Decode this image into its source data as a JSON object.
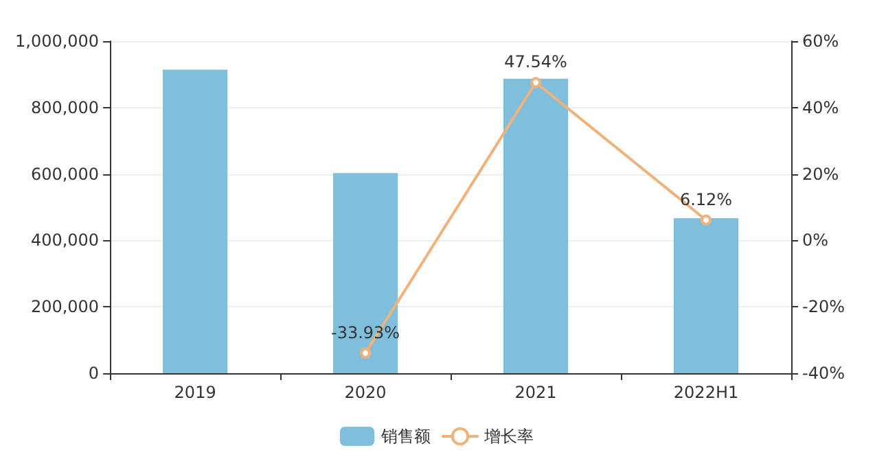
{
  "chart_data": {
    "type": "bar",
    "categories": [
      "2019",
      "2020",
      "2021",
      "2022H1"
    ],
    "series": [
      {
        "name": "销售额",
        "color": "#7fbfdc",
        "values": [
          914000,
          603000,
          887000,
          467000
        ]
      },
      {
        "name": "增长率",
        "type": "line",
        "axis": "y2",
        "color": "#f0b27a",
        "values": [
          null,
          -33.93,
          47.54,
          6.12
        ],
        "value_labels": [
          null,
          "-33.93%",
          "47.54%",
          "6.12%"
        ]
      }
    ],
    "ylim": [
      0,
      1000000
    ],
    "yticks": [
      {
        "value": 0,
        "label": "0"
      },
      {
        "value": 200000,
        "label": "200,000"
      },
      {
        "value": 400000,
        "label": "400,000"
      },
      {
        "value": 600000,
        "label": "600,000"
      },
      {
        "value": 800000,
        "label": "800,000"
      },
      {
        "value": 1000000,
        "label": "1,000,000"
      }
    ],
    "y2lim": [
      -40,
      60
    ],
    "y2ticks": [
      {
        "value": -40,
        "label": "-40%"
      },
      {
        "value": -20,
        "label": "-20%"
      },
      {
        "value": 0,
        "label": "0%"
      },
      {
        "value": 20,
        "label": "20%"
      },
      {
        "value": 40,
        "label": "40%"
      },
      {
        "value": 60,
        "label": "60%"
      }
    ],
    "grid": "y",
    "legend": "bottom",
    "marker": "circle",
    "line_style": "solid"
  }
}
